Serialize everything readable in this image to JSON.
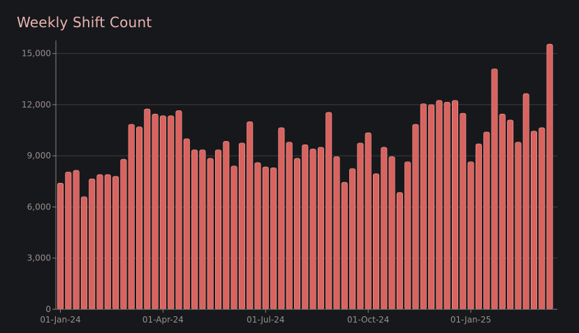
{
  "chart_data": {
    "type": "bar",
    "title": "Weekly Shift Count",
    "xlabel": "",
    "ylabel": "",
    "ylim": [
      0,
      15600
    ],
    "yticks": [
      0,
      3000,
      6000,
      9000,
      12000,
      15000
    ],
    "ytick_labels": [
      "0",
      "3,000",
      "6,000",
      "9,000",
      "12,000",
      "15,000"
    ],
    "xtick_labels": [
      "01-Jan-24",
      "01-Apr-24",
      "01-Jul-24",
      "01-Oct-24",
      "01-Jan-25"
    ],
    "xtick_weeks": [
      0,
      13,
      26,
      39,
      52
    ],
    "grid": true,
    "color": "#d9635f",
    "values": [
      7400,
      8050,
      8150,
      6600,
      7650,
      7900,
      7900,
      7800,
      8800,
      10850,
      10700,
      11750,
      11450,
      11350,
      11350,
      11650,
      10000,
      9350,
      9350,
      8850,
      9350,
      9850,
      8400,
      9750,
      11000,
      8600,
      8350,
      8300,
      10650,
      9800,
      8850,
      9650,
      9400,
      9500,
      11550,
      8950,
      7450,
      8250,
      9750,
      10350,
      7950,
      9500,
      8950,
      6850,
      8650,
      10850,
      12050,
      12000,
      12250,
      12150,
      12250,
      11500,
      8650,
      9700,
      10400,
      14100,
      11450,
      11100,
      9800,
      12650,
      10450,
      10650,
      15550
    ]
  }
}
